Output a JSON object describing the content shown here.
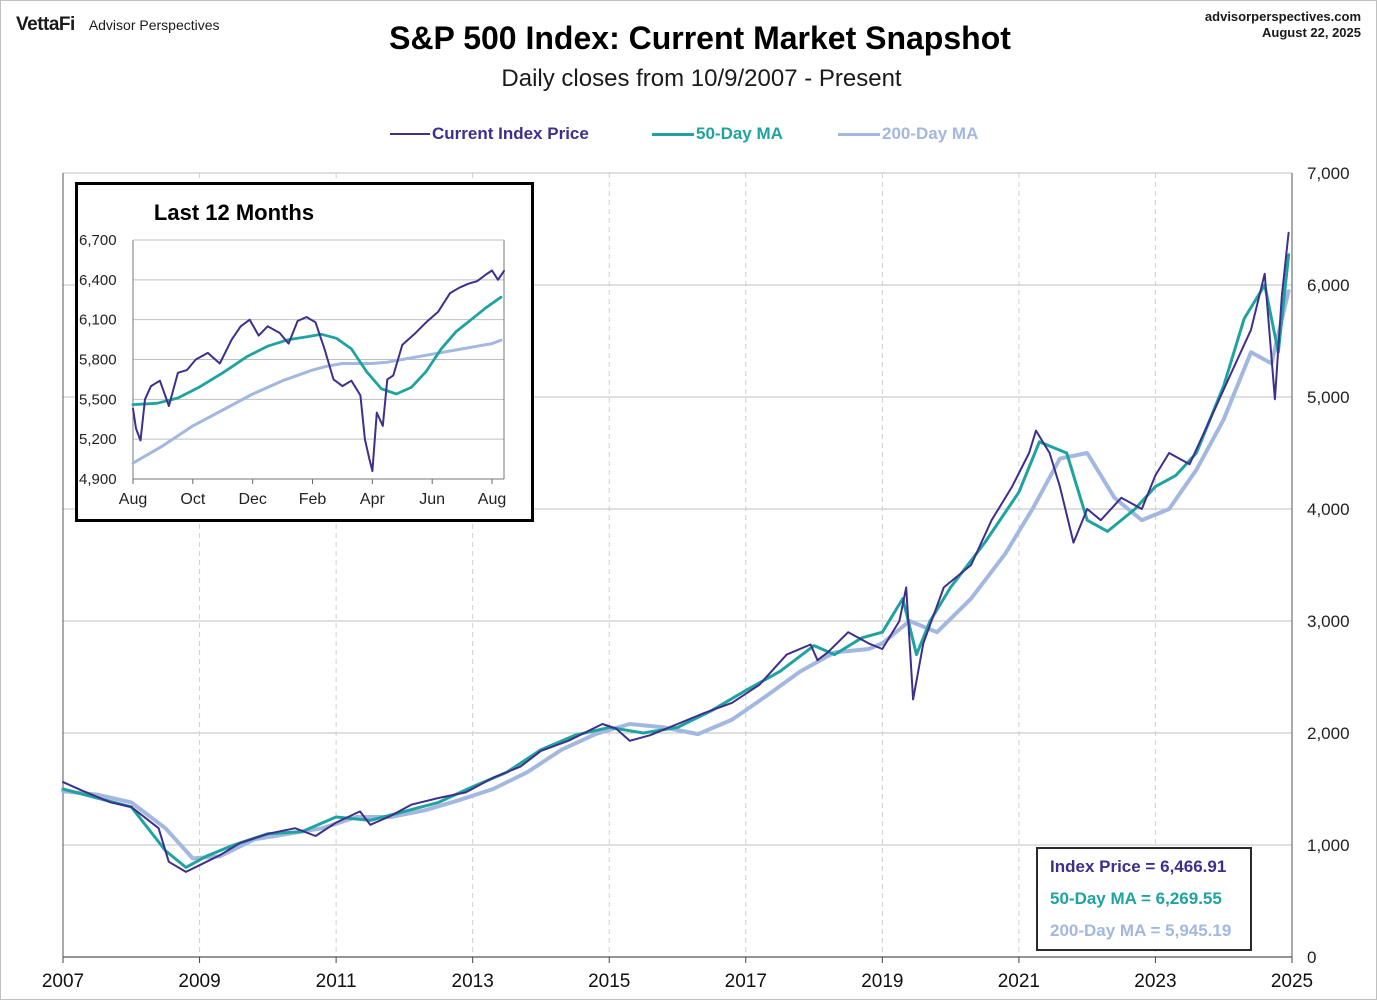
{
  "header": {
    "brand_logo": "VettaFi",
    "brand_sub": "Advisor Perspectives",
    "source_url": "advisorperspectives.com",
    "date": "August 22, 2025"
  },
  "colors": {
    "price": "#3f2f8c",
    "ma50": "#1fa3a0",
    "ma200": "#a3b8df",
    "grid": "#bfbfbf"
  },
  "legend": [
    {
      "label": "Current Index Price",
      "color": "#3f2f8c"
    },
    {
      "label": "50-Day MA",
      "color": "#1fa3a0"
    },
    {
      "label": "200-Day MA",
      "color": "#a3b8df"
    }
  ],
  "values_box": [
    {
      "label": "Index Price =",
      "value": "6,466.91",
      "color": "#3f2f8c"
    },
    {
      "label": "50-Day MA =",
      "value": "6,269.55",
      "color": "#1fa3a0"
    },
    {
      "label": "200-Day MA =",
      "value": "5,945.19",
      "color": "#a3b8df"
    }
  ],
  "chart_data": [
    {
      "type": "line",
      "title": "S&P 500 Index: Current Market Snapshot",
      "subtitle": "Daily closes from 10/9/2007 - Present",
      "xlabel": "",
      "ylabel": "",
      "x_tick_labels": [
        "2007",
        "2009",
        "2011",
        "2013",
        "2015",
        "2017",
        "2019",
        "2021",
        "2023",
        "2025"
      ],
      "y_tick_labels": [
        "0",
        "1,000",
        "2,000",
        "3,000",
        "4,000",
        "5,000",
        "6,000",
        "7,000"
      ],
      "xlim": [
        2007.0,
        2025.0
      ],
      "ylim": [
        0,
        7000
      ],
      "grid": true,
      "legend_position": "top-center",
      "series": [
        {
          "name": "Current Index Price",
          "x": [
            2007.0,
            2007.3,
            2007.7,
            2008.0,
            2008.4,
            2008.55,
            2008.8,
            2009.0,
            2009.3,
            2009.6,
            2010.0,
            2010.4,
            2010.7,
            2011.0,
            2011.35,
            2011.5,
            2011.8,
            2012.1,
            2012.5,
            2012.9,
            2013.3,
            2013.7,
            2014.0,
            2014.4,
            2014.7,
            2014.9,
            2015.1,
            2015.3,
            2015.6,
            2016.0,
            2016.4,
            2016.8,
            2017.2,
            2017.6,
            2017.95,
            2018.05,
            2018.2,
            2018.5,
            2018.8,
            2019.0,
            2019.25,
            2019.35,
            2019.45,
            2019.6,
            2019.9,
            2020.3,
            2020.6,
            2020.9,
            2021.15,
            2021.25,
            2021.45,
            2021.6,
            2021.8,
            2022.0,
            2022.2,
            2022.5,
            2022.8,
            2023.0,
            2023.2,
            2023.5,
            2023.8,
            2024.1,
            2024.4,
            2024.6,
            2024.75,
            2024.85,
            2024.95
          ],
          "values": [
            1562,
            1480,
            1380,
            1340,
            1150,
            850,
            760,
            820,
            910,
            1020,
            1100,
            1150,
            1080,
            1200,
            1300,
            1180,
            1260,
            1360,
            1420,
            1470,
            1600,
            1700,
            1840,
            1930,
            2020,
            2080,
            2040,
            1930,
            1980,
            2080,
            2180,
            2270,
            2430,
            2700,
            2790,
            2650,
            2720,
            2900,
            2800,
            2750,
            3000,
            3300,
            2300,
            2800,
            3300,
            3500,
            3900,
            4200,
            4500,
            4700,
            4500,
            4200,
            3700,
            4000,
            3900,
            4100,
            4000,
            4300,
            4500,
            4400,
            4800,
            5200,
            5600,
            6100,
            4980,
            5900,
            6466.91
          ]
        },
        {
          "name": "50-Day MA",
          "x": [
            2007.0,
            2007.5,
            2008.0,
            2008.5,
            2008.8,
            2009.1,
            2009.5,
            2010.0,
            2010.5,
            2011.0,
            2011.5,
            2012.0,
            2012.5,
            2013.0,
            2013.5,
            2014.0,
            2014.5,
            2015.0,
            2015.5,
            2016.0,
            2016.5,
            2017.0,
            2017.5,
            2018.0,
            2018.3,
            2018.7,
            2019.0,
            2019.3,
            2019.5,
            2019.7,
            2020.0,
            2020.5,
            2021.0,
            2021.3,
            2021.7,
            2022.0,
            2022.3,
            2022.7,
            2023.0,
            2023.3,
            2023.6,
            2024.0,
            2024.3,
            2024.6,
            2024.8,
            2024.95
          ],
          "values": [
            1500,
            1420,
            1340,
            950,
            800,
            900,
            1000,
            1100,
            1120,
            1250,
            1220,
            1300,
            1380,
            1520,
            1650,
            1850,
            1980,
            2050,
            2000,
            2050,
            2200,
            2380,
            2550,
            2780,
            2700,
            2850,
            2900,
            3200,
            2700,
            3000,
            3300,
            3700,
            4150,
            4600,
            4500,
            3900,
            3800,
            4000,
            4200,
            4300,
            4500,
            5100,
            5700,
            6000,
            5400,
            6269.55
          ]
        },
        {
          "name": "200-Day MA",
          "x": [
            2007.0,
            2007.5,
            2008.0,
            2008.5,
            2008.9,
            2009.3,
            2009.8,
            2010.3,
            2010.8,
            2011.3,
            2011.8,
            2012.3,
            2012.8,
            2013.3,
            2013.8,
            2014.3,
            2014.8,
            2015.3,
            2015.8,
            2016.3,
            2016.8,
            2017.3,
            2017.8,
            2018.3,
            2018.8,
            2019.0,
            2019.4,
            2019.8,
            2020.3,
            2020.8,
            2021.2,
            2021.6,
            2022.0,
            2022.4,
            2022.8,
            2023.2,
            2023.6,
            2024.0,
            2024.4,
            2024.7,
            2024.95
          ],
          "values": [
            1480,
            1450,
            1380,
            1150,
            880,
            900,
            1050,
            1100,
            1150,
            1250,
            1250,
            1310,
            1400,
            1500,
            1650,
            1850,
            1990,
            2080,
            2050,
            1990,
            2120,
            2330,
            2550,
            2720,
            2750,
            2800,
            3000,
            2900,
            3200,
            3600,
            4000,
            4450,
            4500,
            4100,
            3900,
            4000,
            4350,
            4800,
            5400,
            5300,
            5945.19
          ]
        }
      ]
    },
    {
      "type": "line",
      "title": "Last 12 Months",
      "x_tick_labels": [
        "Aug",
        "Oct",
        "Dec",
        "Feb",
        "Apr",
        "Jun",
        "Aug"
      ],
      "y_tick_labels": [
        "4,900",
        "5,200",
        "5,500",
        "5,800",
        "6,100",
        "6,400",
        "6,700"
      ],
      "xlim": [
        0,
        12.4
      ],
      "ylim": [
        4900,
        6700
      ],
      "grid": true,
      "series": [
        {
          "name": "Current Index Price",
          "x": [
            0,
            0.1,
            0.25,
            0.4,
            0.6,
            0.9,
            1.2,
            1.5,
            1.8,
            2.1,
            2.5,
            2.9,
            3.3,
            3.6,
            3.9,
            4.2,
            4.5,
            4.9,
            5.2,
            5.5,
            5.8,
            6.1,
            6.4,
            6.7,
            7.0,
            7.3,
            7.6,
            7.75,
            7.9,
            8.0,
            8.15,
            8.35,
            8.5,
            8.7,
            9.0,
            9.4,
            9.8,
            10.2,
            10.6,
            10.9,
            11.2,
            11.5,
            11.8,
            12.0,
            12.2,
            12.4
          ],
          "values": [
            5430,
            5280,
            5190,
            5500,
            5600,
            5640,
            5450,
            5700,
            5720,
            5800,
            5850,
            5770,
            5950,
            6050,
            6100,
            5980,
            6050,
            6000,
            5920,
            6090,
            6120,
            6080,
            5880,
            5650,
            5600,
            5640,
            5530,
            5200,
            5050,
            4960,
            5400,
            5300,
            5650,
            5680,
            5910,
            5990,
            6080,
            6160,
            6300,
            6340,
            6370,
            6390,
            6440,
            6470,
            6400,
            6466.91
          ]
        },
        {
          "name": "50-Day MA",
          "x": [
            0,
            0.8,
            1.5,
            2.2,
            3.0,
            3.8,
            4.5,
            5.2,
            5.8,
            6.3,
            6.8,
            7.3,
            7.8,
            8.3,
            8.8,
            9.3,
            9.8,
            10.3,
            10.8,
            11.3,
            11.8,
            12.3
          ],
          "values": [
            5460,
            5470,
            5510,
            5590,
            5700,
            5820,
            5900,
            5950,
            5970,
            5990,
            5960,
            5880,
            5710,
            5580,
            5540,
            5590,
            5710,
            5880,
            6010,
            6100,
            6190,
            6269.55
          ]
        },
        {
          "name": "200-Day MA",
          "x": [
            0,
            1.0,
            2.0,
            3.0,
            4.0,
            5.0,
            6.0,
            6.5,
            7.0,
            7.5,
            8.0,
            8.5,
            9.0,
            9.5,
            10.0,
            10.5,
            11.0,
            11.5,
            12.0,
            12.3
          ],
          "values": [
            5020,
            5150,
            5300,
            5420,
            5540,
            5640,
            5720,
            5750,
            5770,
            5770,
            5770,
            5780,
            5800,
            5820,
            5840,
            5860,
            5880,
            5900,
            5920,
            5945.19
          ]
        }
      ]
    }
  ]
}
